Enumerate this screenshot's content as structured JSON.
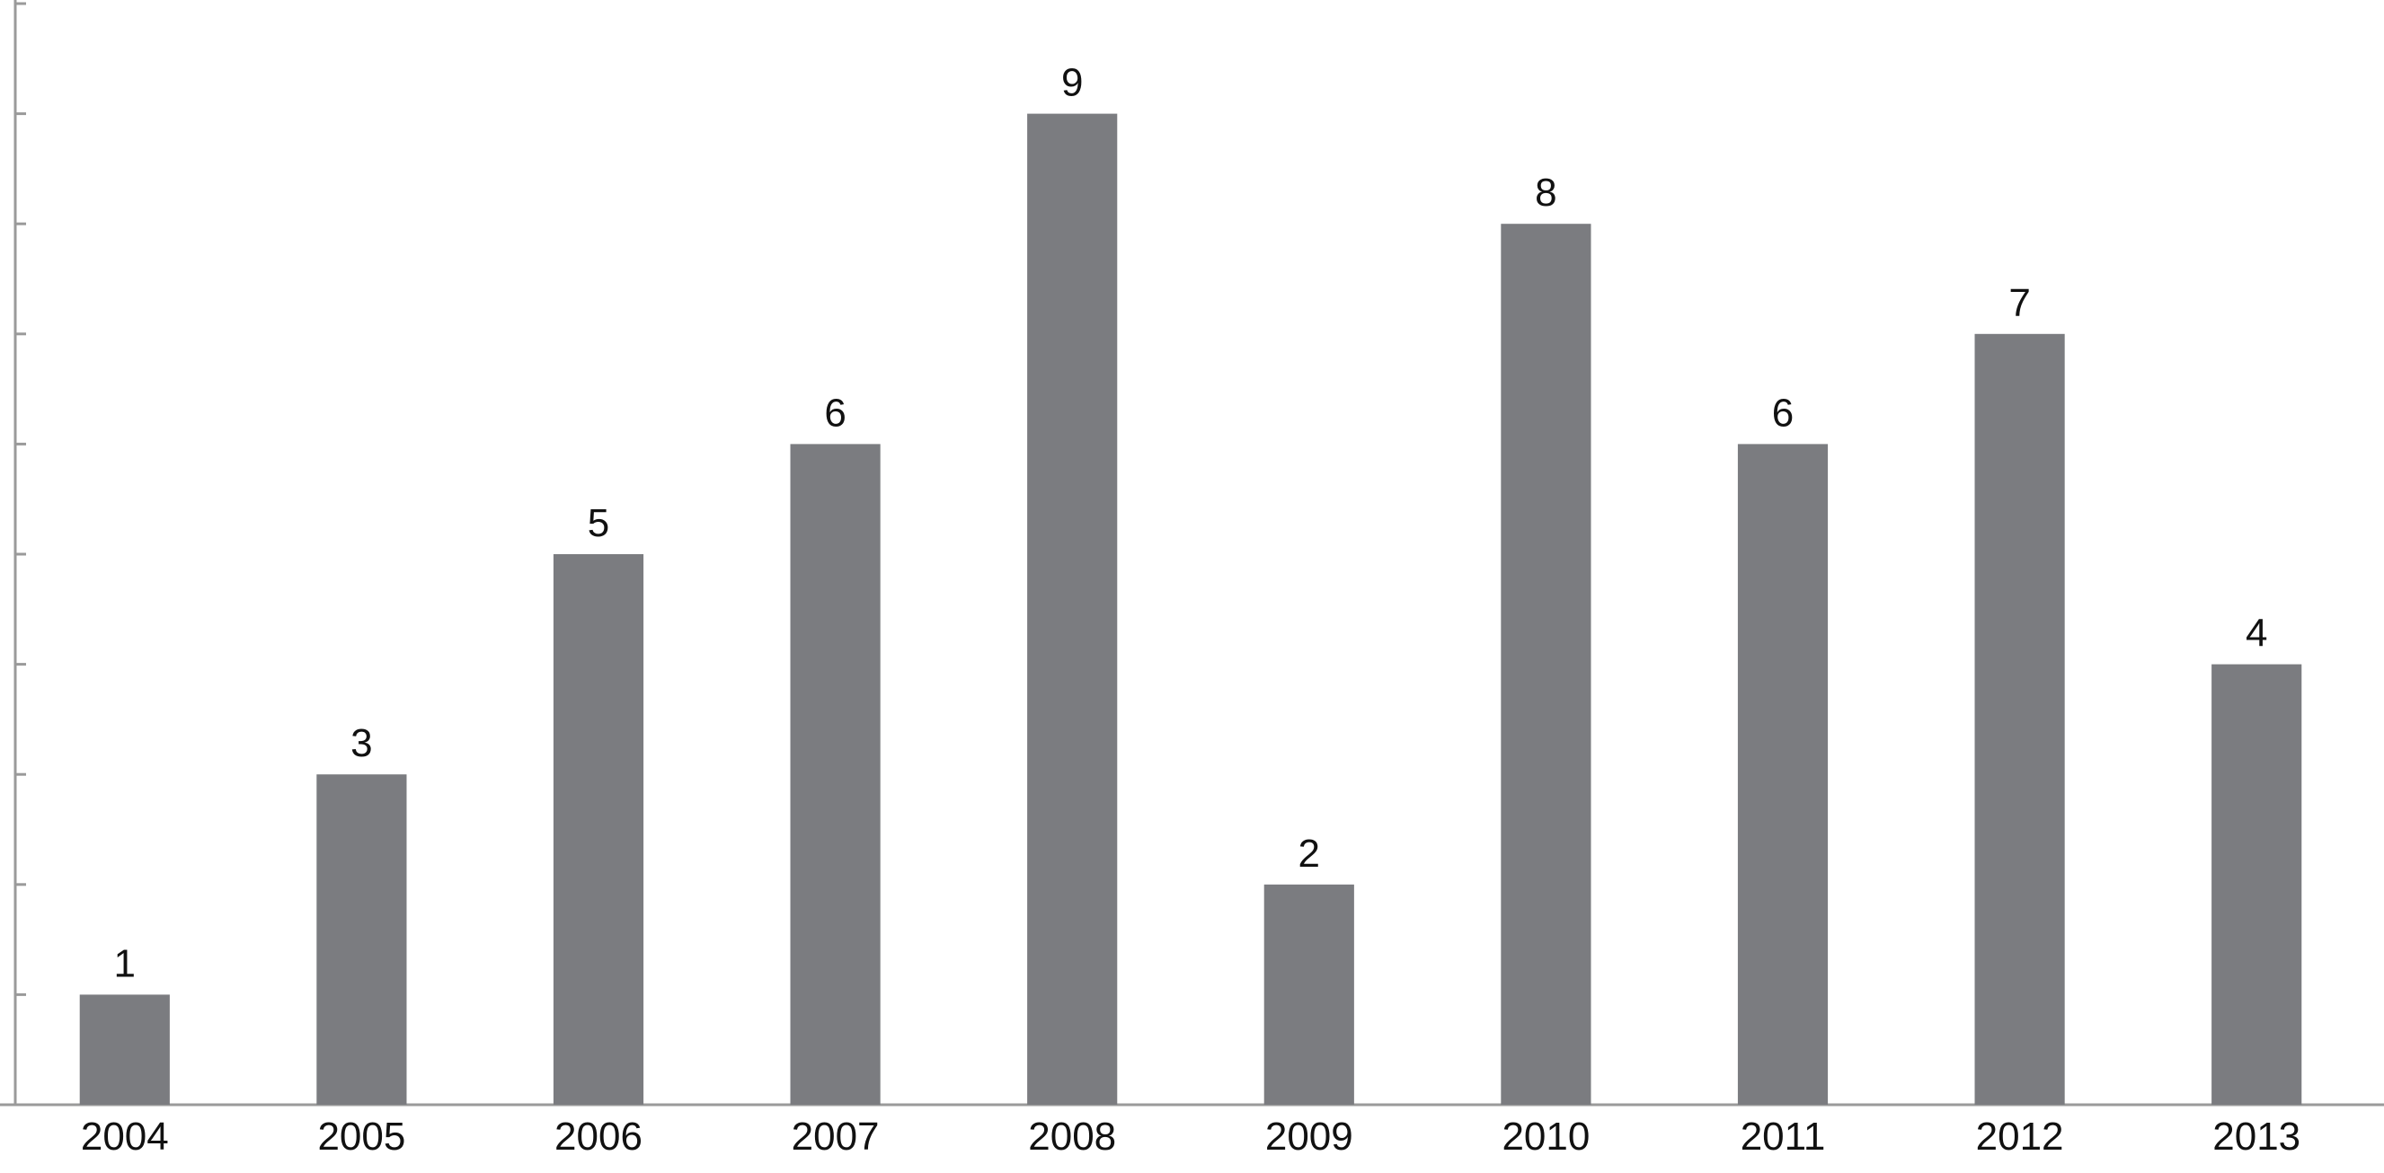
{
  "chart_data": {
    "type": "bar",
    "categories": [
      "2004",
      "2005",
      "2006",
      "2007",
      "2008",
      "2009",
      "2010",
      "2011",
      "2012",
      "2013"
    ],
    "values": [
      1,
      3,
      5,
      6,
      9,
      2,
      8,
      6,
      7,
      4
    ],
    "color": "#7b7c80",
    "ylim": [
      0,
      10
    ],
    "yticks": [
      0,
      1,
      2,
      3,
      4,
      5,
      6,
      7,
      8,
      9,
      10
    ]
  }
}
